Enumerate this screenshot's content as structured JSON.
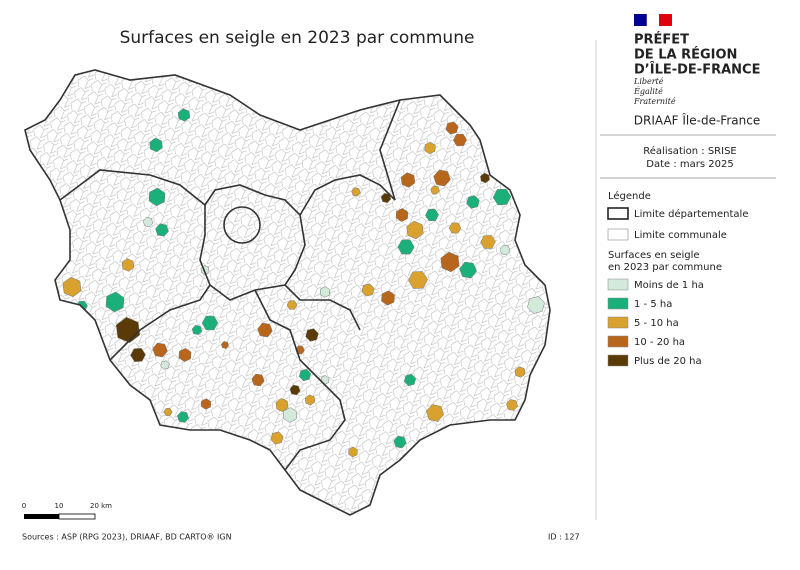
{
  "title": "Surfaces en seigle en 2023 par commune",
  "header": {
    "lines": [
      "PRÉFET",
      "DE LA RÉGION",
      "D’ÎLE-DE-FRANCE"
    ],
    "motto": [
      "Liberté",
      "Égalité",
      "Fraternité"
    ],
    "org": "DRIAAF Île-de-France",
    "credits": [
      "Réalisation : SRISE",
      "Date : mars 2025"
    ]
  },
  "legend": {
    "title": "Légende",
    "boundaries": [
      "Limite départementale",
      "Limite communale"
    ],
    "classes_title": [
      "Surfaces en seigle",
      "en 2023 par commune"
    ],
    "classes": [
      {
        "label": "Moins de 1 ha",
        "color": "#d3e9d9"
      },
      {
        "label": "1 - 5 ha",
        "color": "#1bb07a"
      },
      {
        "label": "5 - 10 ha",
        "color": "#d9a12e"
      },
      {
        "label": "10 - 20 ha",
        "color": "#b8661c"
      },
      {
        "label": "Plus de 20 ha",
        "color": "#5a3a06"
      }
    ]
  },
  "scale_bar": [
    "0",
    "10",
    "20 km"
  ],
  "sources": "Sources : ASP (RPG 2023), DRIAAF, BD CARTO® IGN",
  "id": "ID : 127"
}
